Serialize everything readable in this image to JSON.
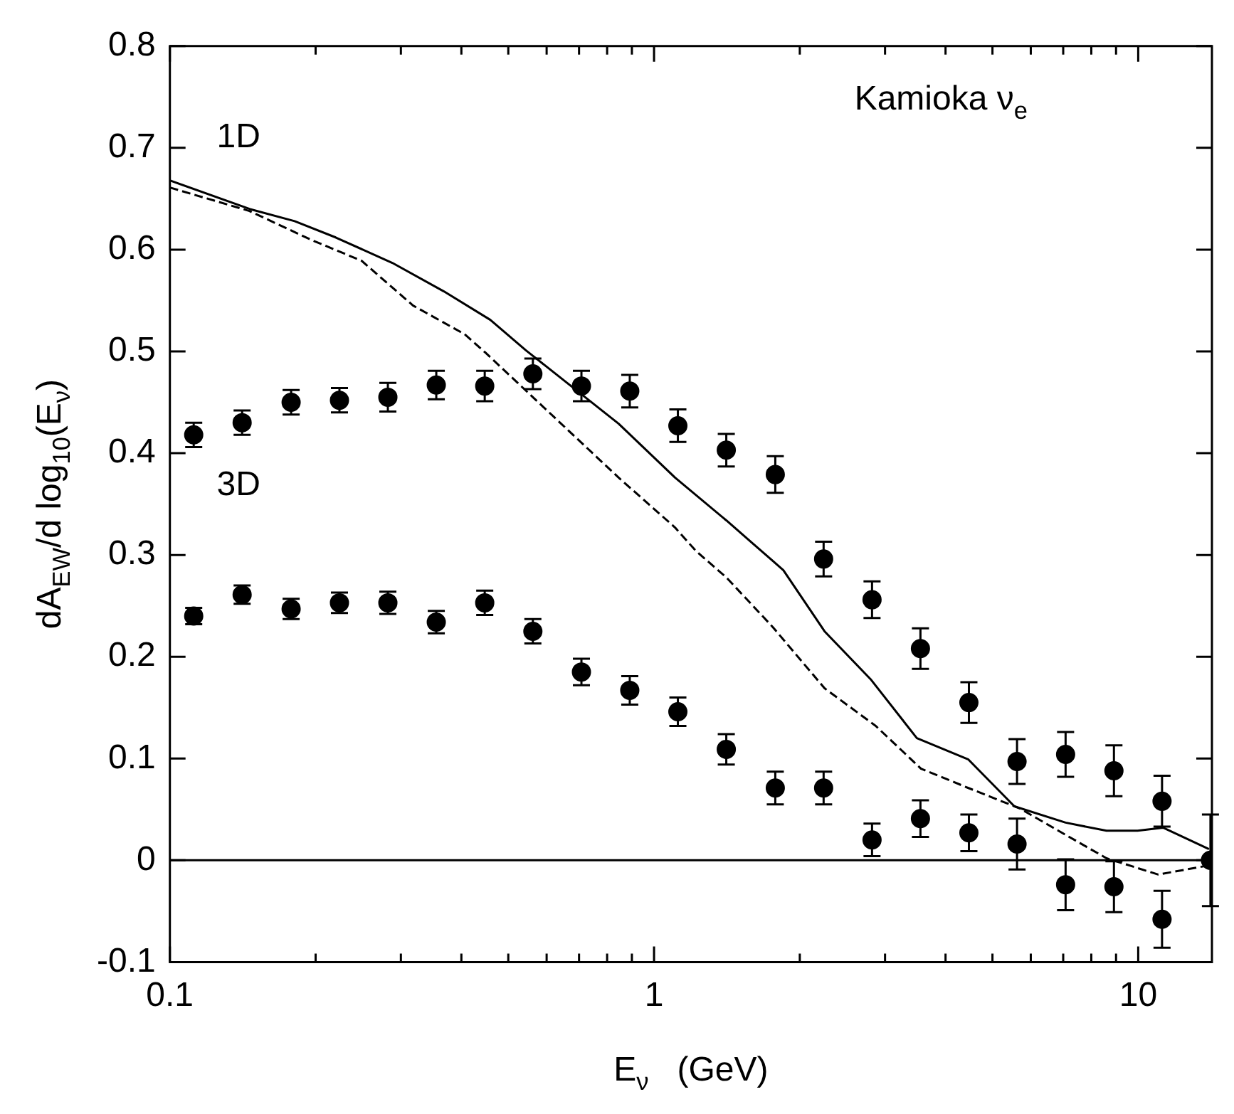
{
  "chart_data": {
    "type": "scatter",
    "title": "Kamioka ν$_{e}$",
    "xlabel": "E$_{ν}$   (GeV)",
    "ylabel": "dA$_{EW}$/d log$_{10}$(E$_{ν}$)",
    "log": "x",
    "xlim": [
      0.1,
      14.2
    ],
    "ylim": [
      -0.1,
      0.8
    ],
    "xticks": [
      {
        "value": 0.1,
        "label": "0.1"
      },
      {
        "value": 0.2,
        "label": null
      },
      {
        "value": 0.3,
        "label": null
      },
      {
        "value": 0.4,
        "label": null
      },
      {
        "value": 0.5,
        "label": null
      },
      {
        "value": 0.6,
        "label": null
      },
      {
        "value": 0.7,
        "label": null
      },
      {
        "value": 0.8,
        "label": null
      },
      {
        "value": 0.9,
        "label": null
      },
      1,
      {
        "value": 2,
        "label": null
      },
      {
        "value": 3,
        "label": null
      },
      {
        "value": 4,
        "label": null
      },
      {
        "value": 5,
        "label": null
      },
      {
        "value": 6,
        "label": null
      },
      {
        "value": 7,
        "label": null
      },
      {
        "value": 8,
        "label": null
      },
      {
        "value": 9,
        "label": null
      },
      10
    ],
    "yticks": [
      -0.1,
      0,
      0.1,
      0.2,
      0.3,
      0.4,
      0.5,
      0.6,
      0.7,
      0.8
    ],
    "grid": false,
    "legend": false,
    "ref_lines": [
      {
        "axis": "y",
        "value": 0,
        "color": "#000000",
        "line_style": "solid"
      }
    ],
    "annotations": [
      "1D",
      "3D"
    ],
    "series": [
      {
        "color": "#000000",
        "marker": "circle",
        "x": [
          0.112,
          0.141,
          0.178,
          0.224,
          0.282,
          0.355,
          0.447,
          0.562,
          0.708,
          0.891,
          1.12,
          1.41,
          1.78,
          2.24,
          2.82,
          3.55,
          4.47,
          5.62,
          7.08,
          8.91,
          11.2
        ],
        "values": [
          0.418,
          0.43,
          0.45,
          0.452,
          0.455,
          0.467,
          0.466,
          0.478,
          0.466,
          0.461,
          0.427,
          0.403,
          0.379,
          0.296,
          0.256,
          0.208,
          0.155,
          0.097,
          0.104,
          0.088,
          0.058
        ],
        "errors": [
          0.012,
          0.012,
          0.012,
          0.012,
          0.014,
          0.014,
          0.015,
          0.015,
          0.015,
          0.016,
          0.016,
          0.016,
          0.018,
          0.017,
          0.018,
          0.02,
          0.02,
          0.022,
          0.022,
          0.025,
          0.025
        ]
      },
      {
        "color": "#000000",
        "marker": "circle",
        "x": [
          0.112,
          0.141,
          0.178,
          0.224,
          0.282,
          0.355,
          0.447,
          0.562,
          0.708,
          0.891,
          1.12,
          1.41,
          1.78,
          2.24,
          2.82,
          3.55,
          4.47,
          5.62,
          7.08,
          8.91,
          11.2,
          14.1
        ],
        "values": [
          0.24,
          0.261,
          0.247,
          0.253,
          0.253,
          0.234,
          0.253,
          0.225,
          0.185,
          0.167,
          0.146,
          0.109,
          0.071,
          0.071,
          0.02,
          0.041,
          0.027,
          0.016,
          -0.024,
          -0.026,
          -0.058,
          0.0
        ],
        "errors": [
          0.008,
          0.009,
          0.01,
          0.01,
          0.011,
          0.011,
          0.012,
          0.012,
          0.013,
          0.014,
          0.014,
          0.015,
          0.016,
          0.016,
          0.016,
          0.018,
          0.018,
          0.025,
          0.025,
          0.025,
          0.028,
          0.045
        ]
      },
      {
        "type": "line",
        "color": "#000000",
        "marker": "none",
        "line_style": "solid",
        "x": [
          0.1,
          0.146,
          0.181,
          0.22,
          0.288,
          0.368,
          0.459,
          0.544,
          0.845,
          1.105,
          1.41,
          1.76,
          1.85,
          2.25,
          2.8,
          3.49,
          4.46,
          5.55,
          7.08,
          8.6,
          9.97,
          11.27,
          14.0
        ],
        "values": [
          0.668,
          0.64,
          0.628,
          0.612,
          0.587,
          0.559,
          0.531,
          0.501,
          0.429,
          0.376,
          0.334,
          0.294,
          0.285,
          0.225,
          0.178,
          0.12,
          0.099,
          0.053,
          0.037,
          0.029,
          0.029,
          0.032,
          0.011
        ]
      },
      {
        "type": "line",
        "color": "#000000",
        "marker": "none",
        "line_style": "dashed",
        "x": [
          0.1,
          0.146,
          0.195,
          0.249,
          0.318,
          0.406,
          0.448,
          0.845,
          1.105,
          1.22,
          1.41,
          1.76,
          2.25,
          2.87,
          3.56,
          4.46,
          5.69,
          7.08,
          8.6,
          11.0,
          14.0
        ],
        "values": [
          0.661,
          0.638,
          0.61,
          0.589,
          0.545,
          0.517,
          0.499,
          0.376,
          0.327,
          0.304,
          0.278,
          0.229,
          0.169,
          0.132,
          0.09,
          0.071,
          0.051,
          0.025,
          0.002,
          -0.014,
          -0.005
        ]
      }
    ]
  }
}
